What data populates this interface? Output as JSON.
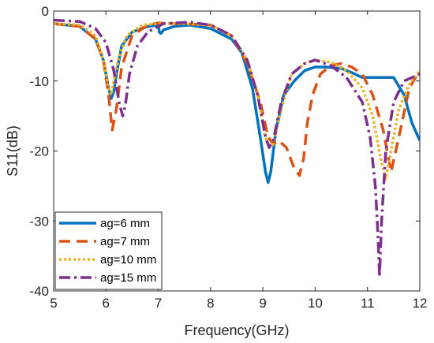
{
  "chart_data": {
    "type": "line",
    "xlabel": "Frequency(GHz)",
    "ylabel": "S11(dB)",
    "xlim": [
      5,
      12
    ],
    "ylim": [
      -40,
      0
    ],
    "xticks": [
      5,
      6,
      7,
      8,
      9,
      10,
      11,
      12
    ],
    "yticks": [
      0,
      -10,
      -20,
      -30,
      -40
    ],
    "grid": false,
    "legend_position": "bottom-left",
    "series": [
      {
        "name": "ag=6 mm",
        "color": "#0072BD",
        "dash": "solid",
        "x": [
          5,
          5.5,
          5.8,
          5.95,
          6.05,
          6.1,
          6.15,
          6.2,
          6.3,
          6.5,
          6.8,
          7.0,
          7.02,
          7.05,
          7.1,
          7.3,
          7.6,
          8.0,
          8.4,
          8.6,
          8.8,
          8.95,
          9.05,
          9.1,
          9.15,
          9.25,
          9.4,
          9.6,
          9.8,
          10.0,
          10.2,
          10.5,
          10.7,
          10.9,
          11.2,
          11.5,
          11.7,
          11.85,
          12
        ],
        "y": [
          -1.8,
          -2.2,
          -4,
          -7,
          -11,
          -12.5,
          -11.5,
          -9,
          -5,
          -3,
          -2.2,
          -2,
          -3,
          -3.2,
          -2.7,
          -2.2,
          -2,
          -2.5,
          -4,
          -6,
          -11,
          -18,
          -23,
          -24.5,
          -23,
          -17,
          -12,
          -10,
          -8.5,
          -8,
          -8,
          -8.2,
          -8.8,
          -9.5,
          -9.5,
          -9.5,
          -12,
          -16,
          -18.5
        ]
      },
      {
        "name": "ag=7 mm",
        "color": "#D95319",
        "dash": "14,8",
        "x": [
          5,
          5.5,
          5.8,
          5.95,
          6.05,
          6.12,
          6.2,
          6.3,
          6.5,
          6.8,
          7.0,
          7.4,
          8.0,
          8.4,
          8.7,
          8.95,
          9.1,
          9.2,
          9.3,
          9.45,
          9.6,
          9.7,
          9.78,
          9.85,
          9.95,
          10.1,
          10.3,
          10.5,
          10.7,
          10.9,
          11.1,
          11.3,
          11.45,
          11.6,
          11.8,
          12
        ],
        "y": [
          -1.8,
          -2.2,
          -4,
          -7,
          -12,
          -17,
          -14,
          -8,
          -3.5,
          -2,
          -1.7,
          -1.8,
          -2,
          -3.5,
          -7.5,
          -13,
          -18,
          -19,
          -18.5,
          -19.5,
          -22.5,
          -23.5,
          -21,
          -16,
          -12,
          -9,
          -7.8,
          -7.5,
          -8,
          -9,
          -12,
          -17,
          -23,
          -18,
          -11,
          -8.5
        ]
      },
      {
        "name": "ag=10 mm",
        "color": "#EDB120",
        "dash": "3,3",
        "x": [
          5,
          5.5,
          5.8,
          5.95,
          6.05,
          6.1,
          6.15,
          6.25,
          6.4,
          6.7,
          7.0,
          7.5,
          8.0,
          8.4,
          8.7,
          8.9,
          9.05,
          9.12,
          9.2,
          9.35,
          9.55,
          9.8,
          10.0,
          10.3,
          10.6,
          10.9,
          11.1,
          11.25,
          11.35,
          11.45,
          11.6,
          11.8,
          12
        ],
        "y": [
          -1.8,
          -2,
          -3.5,
          -7,
          -11,
          -12,
          -10,
          -6.5,
          -3.5,
          -2,
          -1.8,
          -1.8,
          -2,
          -3.5,
          -7,
          -12,
          -18,
          -19.5,
          -19,
          -14,
          -9,
          -7.5,
          -7,
          -7.3,
          -8.5,
          -11,
          -15,
          -21,
          -24,
          -20,
          -14,
          -10.5,
          -8.5
        ]
      },
      {
        "name": "ag=15 mm",
        "color": "#7E2F8E",
        "dash": "14,5,3,5",
        "x": [
          5,
          5.5,
          5.8,
          6.0,
          6.15,
          6.25,
          6.32,
          6.37,
          6.45,
          6.6,
          6.8,
          7.1,
          7.6,
          8.0,
          8.4,
          8.7,
          8.9,
          9.05,
          9.12,
          9.2,
          9.35,
          9.55,
          9.8,
          10.0,
          10.3,
          10.6,
          10.9,
          11.05,
          11.15,
          11.2,
          11.23,
          11.27,
          11.35,
          11.5,
          11.7,
          12
        ],
        "y": [
          -1.3,
          -1.5,
          -2.5,
          -4.5,
          -8.5,
          -13,
          -15,
          -13.5,
          -9,
          -5,
          -3,
          -1.8,
          -1.6,
          -2,
          -3.5,
          -7,
          -12,
          -18,
          -19.5,
          -18.5,
          -13,
          -9,
          -7.5,
          -7,
          -7.8,
          -9.5,
          -13,
          -18,
          -25,
          -32,
          -38,
          -30,
          -20,
          -13,
          -10,
          -9
        ]
      }
    ]
  }
}
